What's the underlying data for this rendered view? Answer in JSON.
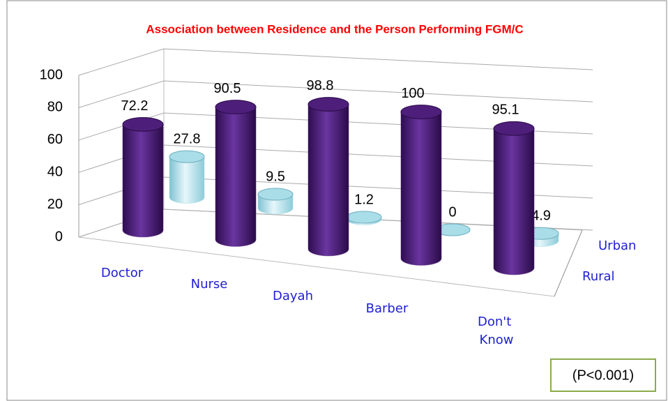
{
  "chart_data": {
    "type": "bar3d",
    "title": "Association between Residence and the Person Performing FGM/C",
    "categories": [
      "Doctor",
      "Nurse",
      "Dayah",
      "Barber",
      "Don't Know"
    ],
    "series": [
      {
        "name": "Rural",
        "color": "#4e1f7a",
        "values": [
          72.2,
          90.5,
          98.8,
          100,
          95.1
        ]
      },
      {
        "name": "Urban",
        "color": "#a9dde8",
        "values": [
          27.8,
          9.5,
          1.2,
          0,
          4.9
        ]
      }
    ],
    "ylim": [
      0,
      100
    ],
    "yticks": [
      0,
      20,
      40,
      60,
      80,
      100
    ],
    "grid": true,
    "annotation": "(P<0.001)"
  }
}
